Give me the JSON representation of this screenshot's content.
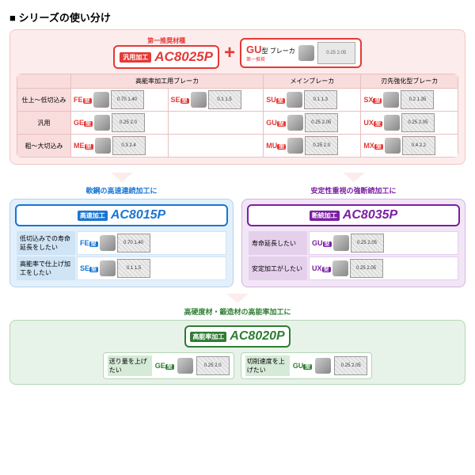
{
  "title": "シリーズの使い分け",
  "colors": {
    "red": "#e53935",
    "blue": "#1976d2",
    "purple": "#7b1fa2",
    "green": "#2e7d32",
    "main_bg": "#fdecec",
    "blue_bg": "#e3f0fb",
    "purple_bg": "#f1e6f5",
    "green_bg": "#e7f3e8"
  },
  "main": {
    "label_left": "第一推奨材種",
    "pill_left": {
      "tag": "汎用加工",
      "code": "AC8025P"
    },
    "pill_right": {
      "tag": "GU",
      "sub": "型 ブレーカ",
      "small": "第一推奨",
      "dims": "0.25 2.05"
    },
    "headers": [
      "高能率加工用ブレーカ",
      "メインブレーカ",
      "刃先強化型ブレーカ"
    ],
    "rows": [
      {
        "head": "仕上～低切込み",
        "cells": [
          {
            "t": "FE",
            "c": "#e53935",
            "d": "0.70 1.40"
          },
          {
            "t": "SE",
            "c": "#e53935",
            "d": "0.1 1.5"
          },
          {
            "t": "SU",
            "c": "#e53935",
            "d": "0.1 1.3"
          },
          {
            "t": "SX",
            "c": "#e53935",
            "d": "0.2 1.35"
          }
        ]
      },
      {
        "head": "汎用",
        "cells": [
          {
            "t": "GE",
            "c": "#e53935",
            "d": "0.25 2.0"
          },
          null,
          {
            "t": "GU",
            "c": "#e53935",
            "d": "0.25 2.05"
          },
          {
            "t": "UX",
            "c": "#e53935",
            "d": "0.25 2.05"
          }
        ]
      },
      {
        "head": "粗～大切込み",
        "cells": [
          {
            "t": "ME",
            "c": "#e53935",
            "d": "0.3 2.4"
          },
          null,
          {
            "t": "MU",
            "c": "#e53935",
            "d": "0.25 2.0"
          },
          {
            "t": "MX",
            "c": "#e53935",
            "d": "0.4 2.2"
          }
        ]
      }
    ]
  },
  "blue": {
    "label": "軟鋼の高速連続加工に",
    "pill": {
      "tag": "高速加工",
      "code": "AC8015P"
    },
    "rows": [
      {
        "head": "低切込みでの寿命延長をしたい",
        "t": "FE",
        "d": "0.70 1.40"
      },
      {
        "head": "高能率で仕上げ加工をしたい",
        "t": "SE",
        "d": "0.1 1.5"
      }
    ]
  },
  "purple": {
    "label": "安定性重視の強断続加工に",
    "pill": {
      "tag": "断続加工",
      "code": "AC8035P"
    },
    "rows": [
      {
        "head": "寿命延長したい",
        "t": "GU",
        "d": "0.25 2.05"
      },
      {
        "head": "安定加工がしたい",
        "t": "UX",
        "d": "0.25 2.05"
      }
    ]
  },
  "green": {
    "label": "高硬度材・鍛造材の高能率加工に",
    "pill": {
      "tag": "高能率加工",
      "code": "AC8020P"
    },
    "items": [
      {
        "head": "送り量を上げたい",
        "t": "GE",
        "d": "0.25 2.0"
      },
      {
        "head": "切削速度を上げたい",
        "t": "GU",
        "d": "0.25 2.05"
      }
    ]
  }
}
